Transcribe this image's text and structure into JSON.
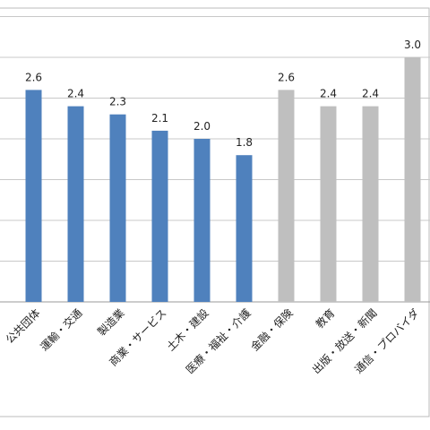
{
  "chart_data": {
    "type": "bar",
    "categories": [
      "公共団体",
      "運輸・交通",
      "製造業",
      "商業・サービス",
      "土木・建設",
      "医療・福祉・介護",
      "金融・保険",
      "教育",
      "出版・放送・新聞",
      "通信・プロバイダ"
    ],
    "values": [
      2.6,
      2.4,
      2.3,
      2.1,
      2.0,
      1.8,
      2.6,
      2.4,
      2.4,
      3.0
    ],
    "value_labels": [
      "2.6",
      "2.4",
      "2.3",
      "2.1",
      "2.0",
      "1.8",
      "2.6",
      "2.4",
      "2.4",
      "3.0"
    ],
    "colors": [
      "#4f81bd",
      "#4f81bd",
      "#4f81bd",
      "#4f81bd",
      "#4f81bd",
      "#4f81bd",
      "#bfbfbf",
      "#bfbfbf",
      "#bfbfbf",
      "#bfbfbf"
    ],
    "ylim": [
      0,
      3.5
    ],
    "yticks": [
      0,
      0.5,
      1,
      1.5,
      2,
      2.5,
      3,
      3.5
    ],
    "grid": true
  }
}
